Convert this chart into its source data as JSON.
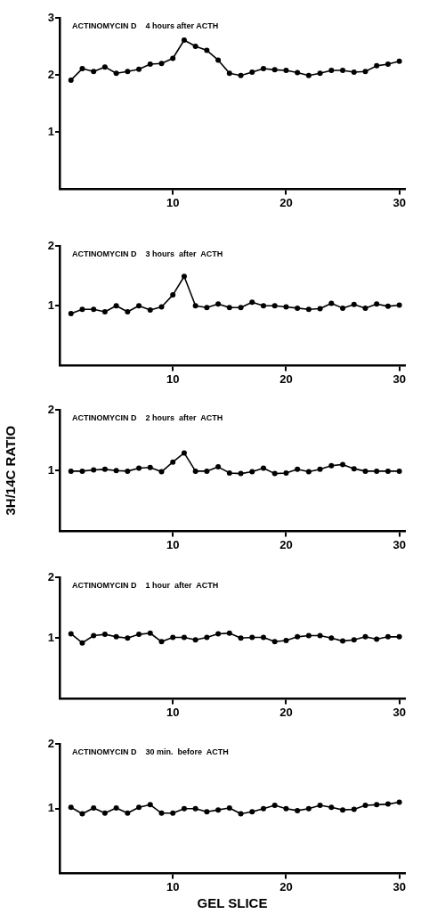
{
  "chart_data": [
    {
      "type": "line",
      "title": "ACTINOMYCIN D    4 hours after ACTH",
      "x": [
        1,
        2,
        3,
        4,
        5,
        6,
        7,
        8,
        9,
        10,
        11,
        12,
        13,
        14,
        15,
        16,
        17,
        18,
        19,
        20,
        21,
        22,
        23,
        24,
        25,
        26,
        27,
        28,
        29,
        30
      ],
      "series": [
        {
          "color": "#000000",
          "values": [
            1.91,
            2.11,
            2.06,
            2.14,
            2.03,
            2.06,
            2.1,
            2.19,
            2.2,
            2.29,
            2.61,
            2.5,
            2.43,
            2.26,
            2.03,
            1.99,
            2.05,
            2.11,
            2.09,
            2.08,
            2.04,
            1.99,
            2.03,
            2.08,
            2.08,
            2.05,
            2.06,
            2.16,
            2.19,
            2.24
          ]
        }
      ],
      "xlim": [
        0,
        30.5
      ],
      "xticks": [
        10,
        20,
        30
      ],
      "ylim": [
        0,
        3
      ],
      "yticks": [
        1,
        2,
        3
      ],
      "marker": "circle",
      "grid": false,
      "legend": false
    },
    {
      "type": "line",
      "title": "ACTINOMYCIN D    3 hours  after  ACTH",
      "x": [
        1,
        2,
        3,
        4,
        5,
        6,
        7,
        8,
        9,
        10,
        11,
        12,
        13,
        14,
        15,
        16,
        17,
        18,
        19,
        20,
        21,
        22,
        23,
        24,
        25,
        26,
        27,
        28,
        29,
        30
      ],
      "series": [
        {
          "color": "#000000",
          "values": [
            0.87,
            0.94,
            0.94,
            0.9,
            1.0,
            0.9,
            1.0,
            0.93,
            0.98,
            1.18,
            1.49,
            1.0,
            0.97,
            1.03,
            0.97,
            0.97,
            1.06,
            1.0,
            1.0,
            0.98,
            0.96,
            0.94,
            0.95,
            1.04,
            0.96,
            1.02,
            0.96,
            1.03,
            0.99,
            1.01
          ]
        }
      ],
      "xlim": [
        0,
        30.5
      ],
      "xticks": [
        10,
        20,
        30
      ],
      "ylim": [
        0,
        2
      ],
      "yticks": [
        1,
        2
      ],
      "marker": "circle",
      "grid": false,
      "legend": false
    },
    {
      "type": "line",
      "title": "ACTINOMYCIN D    2 hours  after  ACTH",
      "ylabel": "3H/14C RATIO",
      "x": [
        1,
        2,
        3,
        4,
        5,
        6,
        7,
        8,
        9,
        10,
        11,
        12,
        13,
        14,
        15,
        16,
        17,
        18,
        19,
        20,
        21,
        22,
        23,
        24,
        25,
        26,
        27,
        28,
        29,
        30
      ],
      "series": [
        {
          "color": "#000000",
          "values": [
            0.99,
            0.99,
            1.01,
            1.02,
            1.0,
            0.99,
            1.04,
            1.05,
            0.98,
            1.14,
            1.29,
            0.99,
            0.99,
            1.06,
            0.96,
            0.95,
            0.98,
            1.04,
            0.95,
            0.96,
            1.02,
            0.98,
            1.02,
            1.08,
            1.1,
            1.03,
            0.99,
            0.99,
            0.99,
            0.99
          ]
        }
      ],
      "xlim": [
        0,
        30.5
      ],
      "xticks": [
        10,
        20,
        30
      ],
      "ylim": [
        0,
        2
      ],
      "yticks": [
        1,
        2
      ],
      "marker": "circle",
      "grid": false,
      "legend": false
    },
    {
      "type": "line",
      "title": "ACTINOMYCIN D    1 hour  after  ACTH",
      "x": [
        1,
        2,
        3,
        4,
        5,
        6,
        7,
        8,
        9,
        10,
        11,
        12,
        13,
        14,
        15,
        16,
        17,
        18,
        19,
        20,
        21,
        22,
        23,
        24,
        25,
        26,
        27,
        28,
        29,
        30
      ],
      "series": [
        {
          "color": "#000000",
          "values": [
            1.07,
            0.92,
            1.04,
            1.06,
            1.02,
            1.0,
            1.06,
            1.08,
            0.94,
            1.01,
            1.01,
            0.97,
            1.01,
            1.07,
            1.08,
            1.0,
            1.01,
            1.01,
            0.94,
            0.96,
            1.02,
            1.04,
            1.04,
            1.0,
            0.95,
            0.97,
            1.02,
            0.98,
            1.02,
            1.02
          ]
        }
      ],
      "xlim": [
        0,
        30.5
      ],
      "xticks": [
        10,
        20,
        30
      ],
      "ylim": [
        0,
        2
      ],
      "yticks": [
        1,
        2
      ],
      "marker": "circle",
      "grid": false,
      "legend": false
    },
    {
      "type": "line",
      "title": "ACTINOMYCIN D    30 min.  before  ACTH",
      "xlabel": "GEL SLICE",
      "x": [
        1,
        2,
        3,
        4,
        5,
        6,
        7,
        8,
        9,
        10,
        11,
        12,
        13,
        14,
        15,
        16,
        17,
        18,
        19,
        20,
        21,
        22,
        23,
        24,
        25,
        26,
        27,
        28,
        29,
        30
      ],
      "series": [
        {
          "color": "#000000",
          "values": [
            1.02,
            0.92,
            1.01,
            0.93,
            1.01,
            0.93,
            1.02,
            1.06,
            0.93,
            0.93,
            1.0,
            1.0,
            0.95,
            0.98,
            1.01,
            0.92,
            0.95,
            1.0,
            1.05,
            1.0,
            0.97,
            1.0,
            1.05,
            1.02,
            0.98,
            0.99,
            1.05,
            1.06,
            1.07,
            1.1
          ]
        }
      ],
      "xlim": [
        0,
        30.5
      ],
      "xticks": [
        10,
        20,
        30
      ],
      "ylim": [
        0,
        2
      ],
      "yticks": [
        1,
        2
      ],
      "marker": "circle",
      "grid": false,
      "legend": false
    }
  ]
}
